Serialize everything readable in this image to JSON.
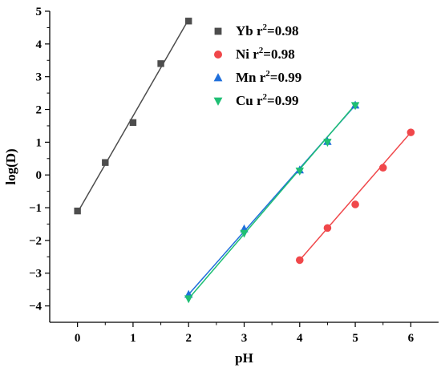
{
  "chart_data": {
    "type": "scatter",
    "xlabel": "pH",
    "ylabel": "log(D)",
    "xlim": [
      -0.5,
      6.5
    ],
    "ylim": [
      -4.5,
      5
    ],
    "xticks": [
      0,
      1,
      2,
      3,
      4,
      5,
      6
    ],
    "yticks": [
      -4,
      -3,
      -2,
      -1,
      0,
      1,
      2,
      3,
      4,
      5
    ],
    "grid": false,
    "legend_position": "top-right",
    "series": [
      {
        "name": "Yb",
        "r2_label": "r",
        "r2_sup": "2",
        "r2_value": "=0.98",
        "marker": "square",
        "color": "#4d4d4d",
        "x": [
          0,
          0.5,
          1,
          1.5,
          2
        ],
        "y": [
          -1.1,
          0.38,
          1.6,
          3.4,
          4.7
        ],
        "fit": {
          "x": [
            0,
            2
          ],
          "y": [
            -1.15,
            4.75
          ]
        }
      },
      {
        "name": "Ni",
        "r2_label": "r",
        "r2_sup": "2",
        "r2_value": "=0.98",
        "marker": "circle",
        "color": "#f0474a",
        "x": [
          4,
          4.5,
          5,
          5.5,
          6
        ],
        "y": [
          -2.6,
          -1.62,
          -0.9,
          0.22,
          1.3
        ],
        "fit": {
          "x": [
            4,
            6
          ],
          "y": [
            -2.6,
            1.3
          ]
        }
      },
      {
        "name": "Mn",
        "r2_label": "r",
        "r2_sup": "2",
        "r2_value": "=0.99",
        "marker": "triangle-up",
        "color": "#1f6fdb",
        "x": [
          2,
          3,
          4,
          4.5,
          5
        ],
        "y": [
          -3.65,
          -1.65,
          0.15,
          1.02,
          2.13
        ],
        "fit": {
          "x": [
            2,
            5
          ],
          "y": [
            -3.65,
            2.13
          ]
        }
      },
      {
        "name": "Cu",
        "r2_label": "r",
        "r2_sup": "2",
        "r2_value": "=0.99",
        "marker": "triangle-down",
        "color": "#1fbf74",
        "x": [
          2,
          3,
          4,
          4.5,
          5
        ],
        "y": [
          -3.78,
          -1.78,
          0.12,
          1.0,
          2.12
        ],
        "fit": {
          "x": [
            2,
            5
          ],
          "y": [
            -3.78,
            2.15
          ]
        }
      }
    ]
  }
}
